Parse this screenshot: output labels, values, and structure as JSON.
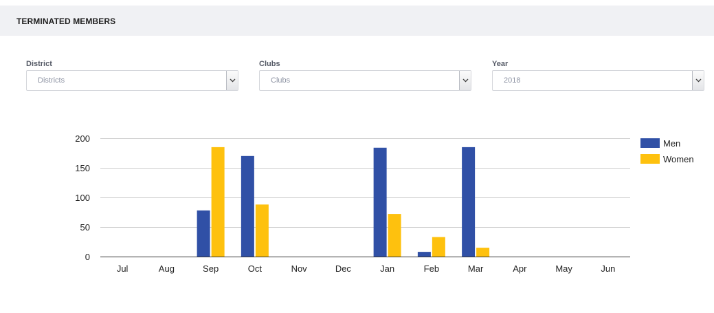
{
  "header": {
    "title": "TERMINATED MEMBERS"
  },
  "filters": {
    "district": {
      "label": "District",
      "value": "Districts"
    },
    "clubs": {
      "label": "Clubs",
      "value": "Clubs"
    },
    "year": {
      "label": "Year",
      "value": "2018"
    }
  },
  "icons": {
    "dropdown": "chevron-down-icon"
  },
  "colors": {
    "men": "#3050a6",
    "women": "#fec10e",
    "grid": "#cccccc"
  },
  "chart_data": {
    "type": "bar",
    "categories": [
      "Jul",
      "Aug",
      "Sep",
      "Oct",
      "Nov",
      "Dec",
      "Jan",
      "Feb",
      "Mar",
      "Apr",
      "May",
      "Jun"
    ],
    "series": [
      {
        "name": "Men",
        "values": [
          0,
          0,
          78,
          170,
          0,
          0,
          184,
          8,
          185,
          0,
          0,
          0
        ]
      },
      {
        "name": "Women",
        "values": [
          0,
          0,
          185,
          88,
          0,
          0,
          72,
          33,
          15,
          0,
          0,
          0
        ]
      }
    ],
    "yticks": [
      0,
      50,
      100,
      150,
      200
    ],
    "ylim": [
      0,
      200
    ],
    "grid": true,
    "legend": "right"
  }
}
